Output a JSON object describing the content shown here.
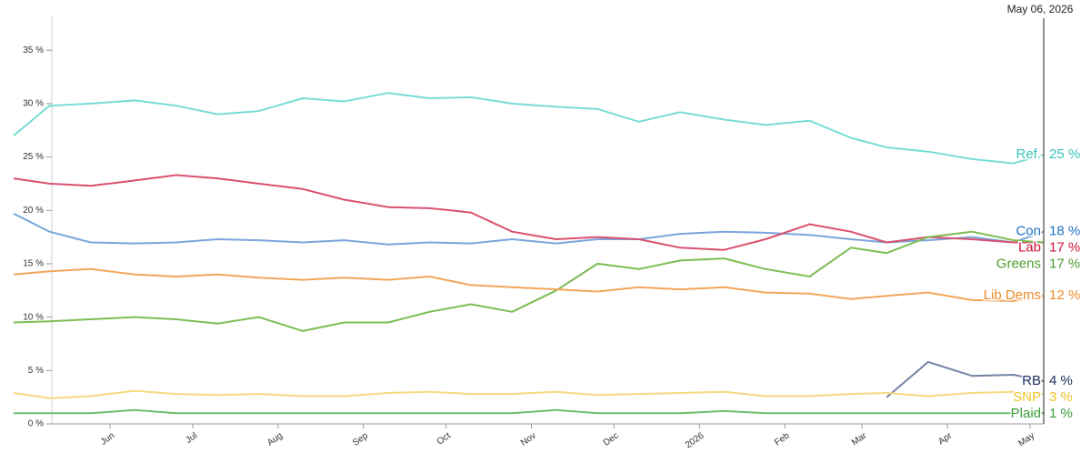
{
  "chart_data": {
    "type": "line",
    "x": [
      "2025-04-27",
      "2025-05-10",
      "2025-05-25",
      "2025-06-10",
      "2025-06-25",
      "2025-07-10",
      "2025-07-25",
      "2025-08-10",
      "2025-08-25",
      "2025-09-10",
      "2025-09-25",
      "2025-10-10",
      "2025-10-25",
      "2025-11-10",
      "2025-11-25",
      "2025-12-10",
      "2025-12-25",
      "2026-01-10",
      "2026-01-25",
      "2026-02-10",
      "2026-02-25",
      "2026-03-10",
      "2026-03-25",
      "2026-04-10",
      "2026-04-25",
      "2026-05-06"
    ],
    "xlim": [
      "2025-04-27",
      "2026-05-06"
    ],
    "xticks": [
      {
        "value": "2025-06-01",
        "label": "Jun"
      },
      {
        "value": "2025-07-01",
        "label": "Jul"
      },
      {
        "value": "2025-08-01",
        "label": "Aug"
      },
      {
        "value": "2025-09-01",
        "label": "Sep"
      },
      {
        "value": "2025-10-01",
        "label": "Oct"
      },
      {
        "value": "2025-11-01",
        "label": "Nov"
      },
      {
        "value": "2025-12-01",
        "label": "Dec"
      },
      {
        "value": "2026-01-01",
        "label": "2026"
      },
      {
        "value": "2026-02-01",
        "label": "Feb"
      },
      {
        "value": "2026-03-01",
        "label": "Mar"
      },
      {
        "value": "2026-04-01",
        "label": "Apr"
      },
      {
        "value": "2026-05-01",
        "label": "May"
      }
    ],
    "ylim": [
      0,
      38
    ],
    "yticks": [
      {
        "value": 0,
        "label": "0 %"
      },
      {
        "value": 5,
        "label": "5 %"
      },
      {
        "value": 10,
        "label": "10 %"
      },
      {
        "value": 15,
        "label": "15 %"
      },
      {
        "value": 20,
        "label": "20 %"
      },
      {
        "value": 25,
        "label": "25 %"
      },
      {
        "value": 30,
        "label": "30 %"
      },
      {
        "value": 35,
        "label": "35 %"
      }
    ],
    "crosshair": {
      "x": "2026-05-06",
      "label": "May 06, 2026"
    },
    "series": [
      {
        "name": "Ref.",
        "color": "#78dcd6",
        "label_color": "#35c4bb",
        "values": [
          27.0,
          29.8,
          30.0,
          30.3,
          29.8,
          29.0,
          29.3,
          30.5,
          30.2,
          31.0,
          30.5,
          30.6,
          30.0,
          29.7,
          29.5,
          28.3,
          29.2,
          28.5,
          28.0,
          28.4,
          26.8,
          25.9,
          25.5,
          24.8,
          24.4,
          25.2
        ],
        "value_labels": [
          null,
          null,
          null,
          null,
          null,
          null,
          null,
          null,
          null,
          null,
          null,
          null,
          null,
          null,
          null,
          null,
          null,
          null,
          null,
          null,
          null,
          null,
          null,
          null,
          null,
          "25 %"
        ]
      },
      {
        "name": "Con",
        "color": "#79a6dc",
        "label_color": "#1f6fc0",
        "values": [
          19.7,
          18.0,
          17.0,
          16.9,
          17.0,
          17.3,
          17.2,
          17.0,
          17.2,
          16.8,
          17.0,
          16.9,
          17.3,
          16.9,
          17.3,
          17.3,
          17.8,
          18.0,
          17.9,
          17.7,
          17.3,
          17.0,
          17.2,
          17.5,
          17.0,
          18.0
        ],
        "value_labels": [
          null,
          null,
          null,
          null,
          null,
          null,
          null,
          null,
          null,
          null,
          null,
          null,
          null,
          null,
          null,
          null,
          null,
          null,
          null,
          null,
          null,
          null,
          null,
          null,
          null,
          "18 %"
        ]
      },
      {
        "name": "Lab",
        "color": "#d9506f",
        "label_color": "#d1103c",
        "values": [
          23.0,
          22.5,
          22.3,
          22.8,
          23.3,
          23.0,
          22.5,
          22.0,
          21.0,
          20.3,
          20.2,
          19.8,
          18.0,
          17.3,
          17.5,
          17.3,
          16.5,
          16.3,
          17.3,
          18.7,
          18.0,
          17.0,
          17.5,
          17.3,
          17.0,
          17.0
        ],
        "value_labels": [
          null,
          null,
          null,
          null,
          null,
          null,
          null,
          null,
          null,
          null,
          null,
          null,
          null,
          null,
          null,
          null,
          null,
          null,
          null,
          null,
          null,
          null,
          null,
          null,
          null,
          "17 %"
        ]
      },
      {
        "name": "Greens",
        "color": "#7cbd55",
        "label_color": "#4f9b2d",
        "values": [
          9.5,
          9.6,
          9.8,
          10.0,
          9.8,
          9.4,
          10.0,
          8.7,
          9.5,
          9.5,
          10.5,
          11.2,
          10.5,
          12.5,
          15.0,
          14.5,
          15.3,
          15.5,
          14.5,
          13.8,
          16.5,
          16.0,
          17.5,
          18.0,
          17.2,
          17.0
        ],
        "value_labels": [
          null,
          null,
          null,
          null,
          null,
          null,
          null,
          null,
          null,
          null,
          null,
          null,
          null,
          null,
          null,
          null,
          null,
          null,
          null,
          null,
          null,
          null,
          null,
          null,
          null,
          "17 %"
        ]
      },
      {
        "name": "Lib Dems",
        "color": "#f2a65a",
        "label_color": "#ec8a2a",
        "values": [
          14.0,
          14.3,
          14.5,
          14.0,
          13.8,
          14.0,
          13.7,
          13.5,
          13.7,
          13.5,
          13.8,
          13.0,
          12.8,
          12.6,
          12.4,
          12.8,
          12.6,
          12.8,
          12.3,
          12.2,
          11.7,
          12.0,
          12.3,
          11.6,
          11.5,
          12.0
        ],
        "value_labels": [
          null,
          null,
          null,
          null,
          null,
          null,
          null,
          null,
          null,
          null,
          null,
          null,
          null,
          null,
          null,
          null,
          null,
          null,
          null,
          null,
          null,
          null,
          null,
          null,
          null,
          "12 %"
        ]
      },
      {
        "name": "RB",
        "color": "#7383a3",
        "label_color": "#1b2b5c",
        "values": [
          null,
          null,
          null,
          null,
          null,
          null,
          null,
          null,
          null,
          null,
          null,
          null,
          null,
          null,
          null,
          null,
          null,
          null,
          null,
          null,
          null,
          2.5,
          5.8,
          4.5,
          4.6,
          4.0
        ],
        "value_labels": [
          null,
          null,
          null,
          null,
          null,
          null,
          null,
          null,
          null,
          null,
          null,
          null,
          null,
          null,
          null,
          null,
          null,
          null,
          null,
          null,
          null,
          null,
          null,
          null,
          null,
          "4 %"
        ]
      },
      {
        "name": "SNP",
        "color": "#f6d981",
        "label_color": "#f0c52a",
        "values": [
          2.9,
          2.4,
          2.6,
          3.1,
          2.8,
          2.7,
          2.8,
          2.6,
          2.6,
          2.9,
          3.0,
          2.8,
          2.8,
          3.0,
          2.7,
          2.8,
          2.9,
          3.0,
          2.6,
          2.6,
          2.8,
          2.9,
          2.6,
          2.9,
          3.0,
          2.8
        ],
        "value_labels": [
          null,
          null,
          null,
          null,
          null,
          null,
          null,
          null,
          null,
          null,
          null,
          null,
          null,
          null,
          null,
          null,
          null,
          null,
          null,
          null,
          null,
          null,
          null,
          null,
          null,
          "3 %"
        ]
      },
      {
        "name": "Plaid",
        "color": "#6cbf6c",
        "label_color": "#3b9b3b",
        "values": [
          1.0,
          1.0,
          1.0,
          1.3,
          1.0,
          1.0,
          1.0,
          1.0,
          1.0,
          1.0,
          1.0,
          1.0,
          1.0,
          1.3,
          1.0,
          1.0,
          1.0,
          1.2,
          1.0,
          1.0,
          1.0,
          1.0,
          1.0,
          1.0,
          1.0,
          1.0
        ],
        "value_labels": [
          null,
          null,
          null,
          null,
          null,
          null,
          null,
          null,
          null,
          null,
          null,
          null,
          null,
          null,
          null,
          null,
          null,
          null,
          null,
          null,
          null,
          null,
          null,
          null,
          null,
          "1 %"
        ]
      }
    ]
  }
}
